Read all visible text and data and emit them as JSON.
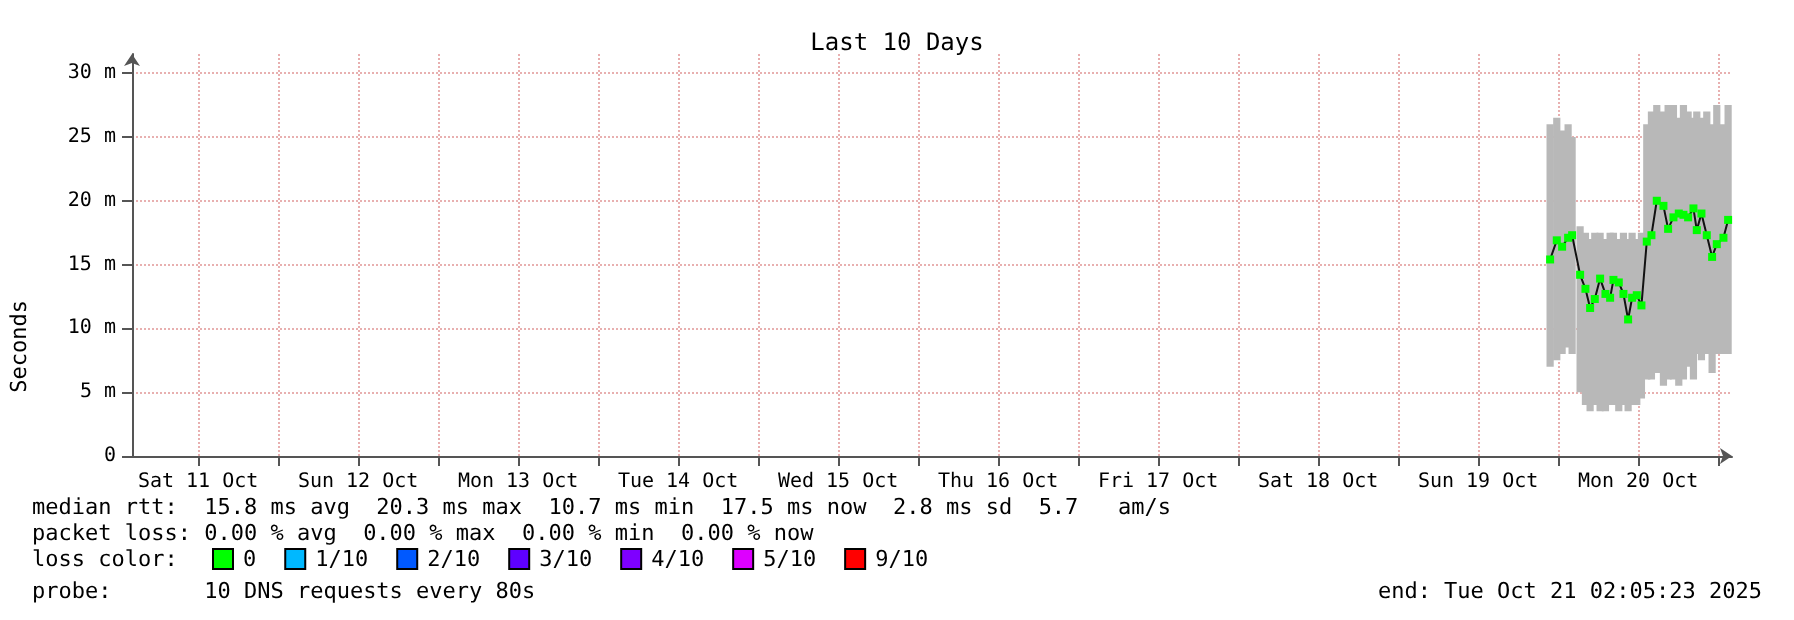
{
  "chart_data": {
    "type": "line",
    "title": "Last 10 Days",
    "ylabel": "Seconds",
    "legend_title": "loss color:",
    "legend": "bottom",
    "grid": true,
    "marker": "square",
    "line_style": "solid",
    "xlim": [
      "2025-10-11T02:05",
      "2025-10-21T02:05"
    ],
    "xticks": [
      {
        "value": "2025-10-11T12:00",
        "label": "Sat 11 Oct"
      },
      {
        "value": "2025-10-12T00:00",
        "label": null
      },
      {
        "value": "2025-10-12T12:00",
        "label": "Sun 12 Oct"
      },
      {
        "value": "2025-10-13T00:00",
        "label": null
      },
      {
        "value": "2025-10-13T12:00",
        "label": "Mon 13 Oct"
      },
      {
        "value": "2025-10-14T00:00",
        "label": null
      },
      {
        "value": "2025-10-14T12:00",
        "label": "Tue 14 Oct"
      },
      {
        "value": "2025-10-15T00:00",
        "label": null
      },
      {
        "value": "2025-10-15T12:00",
        "label": "Wed 15 Oct"
      },
      {
        "value": "2025-10-16T00:00",
        "label": null
      },
      {
        "value": "2025-10-16T12:00",
        "label": "Thu 16 Oct"
      },
      {
        "value": "2025-10-17T00:00",
        "label": null
      },
      {
        "value": "2025-10-17T12:00",
        "label": "Fri 17 Oct"
      },
      {
        "value": "2025-10-18T00:00",
        "label": null
      },
      {
        "value": "2025-10-18T12:00",
        "label": "Sat 18 Oct"
      },
      {
        "value": "2025-10-19T00:00",
        "label": null
      },
      {
        "value": "2025-10-19T12:00",
        "label": "Sun 19 Oct"
      },
      {
        "value": "2025-10-20T00:00",
        "label": null
      },
      {
        "value": "2025-10-20T12:00",
        "label": "Mon 20 Oct"
      },
      {
        "value": "2025-10-21T00:00",
        "label": null
      }
    ],
    "ylim": [
      0,
      31.5
    ],
    "yticks": [
      0,
      {
        "value": 5,
        "label": "5 m"
      },
      {
        "value": 10,
        "label": "10 m"
      },
      {
        "value": 15,
        "label": "15 m"
      },
      {
        "value": 20,
        "label": "20 m"
      },
      {
        "value": 25,
        "label": "25 m"
      },
      {
        "value": 30,
        "label": "30 m"
      }
    ],
    "x": [
      "2025-10-19T22:48",
      "2025-10-19T23:48",
      "2025-10-20T00:36",
      "2025-10-20T01:30",
      "2025-10-20T02:06",
      "2025-10-20T03:18",
      "2025-10-20T04:06",
      "2025-10-20T04:48",
      "2025-10-20T05:30",
      "2025-10-20T06:18",
      "2025-10-20T07:06",
      "2025-10-20T07:48",
      "2025-10-20T08:18",
      "2025-10-20T09:06",
      "2025-10-20T09:48",
      "2025-10-20T10:30",
      "2025-10-20T11:06",
      "2025-10-20T11:48",
      "2025-10-20T12:30",
      "2025-10-20T13:18",
      "2025-10-20T14:00",
      "2025-10-20T14:48",
      "2025-10-20T15:48",
      "2025-10-20T16:30",
      "2025-10-20T17:18",
      "2025-10-20T18:06",
      "2025-10-20T18:48",
      "2025-10-20T19:30",
      "2025-10-20T20:18",
      "2025-10-20T20:48",
      "2025-10-20T21:30",
      "2025-10-20T22:18",
      "2025-10-20T23:06",
      "2025-10-20T23:48",
      "2025-10-21T00:48",
      "2025-10-21T01:30"
    ],
    "series": [
      {
        "name": "0",
        "color": "#00ff00",
        "values": [
          15.4,
          16.9,
          16.4,
          17.1,
          17.3,
          14.2,
          13.1,
          11.6,
          12.3,
          13.9,
          12.7,
          12.4,
          13.8,
          13.6,
          12.7,
          10.7,
          12.4,
          12.6,
          11.8,
          16.8,
          17.3,
          20,
          19.6,
          17.8,
          18.7,
          19,
          18.9,
          18.7,
          19.4,
          17.7,
          19,
          17.3,
          15.6,
          16.6,
          17.1,
          18.5
        ],
        "lower": [
          7,
          7.5,
          8,
          8.5,
          8,
          5,
          4,
          3.5,
          4,
          3.5,
          3.5,
          4,
          4,
          3.5,
          4,
          3.5,
          4,
          4,
          4.5,
          6,
          6,
          6.5,
          5.5,
          6,
          6,
          5.5,
          6,
          7,
          6,
          8,
          7.5,
          8,
          6.5,
          8,
          8,
          8
        ],
        "upper": [
          26,
          26.5,
          25.5,
          26,
          25,
          18,
          17.5,
          17,
          17.5,
          17.5,
          17,
          17.5,
          17.5,
          17,
          17.5,
          17,
          17.5,
          17,
          17.5,
          26,
          27,
          27.5,
          27,
          27.5,
          27.5,
          26.5,
          27.5,
          27,
          26.5,
          27,
          26.5,
          27,
          26,
          27.5,
          26,
          27.5
        ]
      },
      {
        "name": "1/10",
        "color": "#00b8ff",
        "values": [
          null,
          null,
          null,
          null,
          null,
          null,
          null,
          null,
          null,
          null,
          null,
          null,
          null,
          null,
          null,
          null,
          null,
          null,
          null,
          null,
          null,
          null,
          null,
          null,
          null,
          null,
          null,
          null,
          null,
          null,
          null,
          null,
          null,
          null,
          null,
          null
        ]
      },
      {
        "name": "2/10",
        "color": "#0059ff",
        "values": [
          null,
          null,
          null,
          null,
          null,
          null,
          null,
          null,
          null,
          null,
          null,
          null,
          null,
          null,
          null,
          null,
          null,
          null,
          null,
          null,
          null,
          null,
          null,
          null,
          null,
          null,
          null,
          null,
          null,
          null,
          null,
          null,
          null,
          null,
          null,
          null
        ]
      },
      {
        "name": "3/10",
        "color": "#5e00ff",
        "values": [
          null,
          null,
          null,
          null,
          null,
          null,
          null,
          null,
          null,
          null,
          null,
          null,
          null,
          null,
          null,
          null,
          null,
          null,
          null,
          null,
          null,
          null,
          null,
          null,
          null,
          null,
          null,
          null,
          null,
          null,
          null,
          null,
          null,
          null,
          null,
          null
        ]
      },
      {
        "name": "4/10",
        "color": "#7e00ff",
        "values": [
          null,
          null,
          null,
          null,
          null,
          null,
          null,
          null,
          null,
          null,
          null,
          null,
          null,
          null,
          null,
          null,
          null,
          null,
          null,
          null,
          null,
          null,
          null,
          null,
          null,
          null,
          null,
          null,
          null,
          null,
          null,
          null,
          null,
          null,
          null,
          null
        ]
      },
      {
        "name": "5/10",
        "color": "#dd00ff",
        "values": [
          null,
          null,
          null,
          null,
          null,
          null,
          null,
          null,
          null,
          null,
          null,
          null,
          null,
          null,
          null,
          null,
          null,
          null,
          null,
          null,
          null,
          null,
          null,
          null,
          null,
          null,
          null,
          null,
          null,
          null,
          null,
          null,
          null,
          null,
          null,
          null
        ]
      },
      {
        "name": "9/10",
        "color": "#ff0000",
        "values": [
          null,
          null,
          null,
          null,
          null,
          null,
          null,
          null,
          null,
          null,
          null,
          null,
          null,
          null,
          null,
          null,
          null,
          null,
          null,
          null,
          null,
          null,
          null,
          null,
          null,
          null,
          null,
          null,
          null,
          null,
          null,
          null,
          null,
          null,
          null,
          null
        ]
      }
    ],
    "annotations": [
      "median rtt:  15.8 ms avg  20.3 ms max  10.7 ms min  17.5 ms now  2.8 ms sd  5.7   am/s",
      "packet loss: 0.00 % avg  0.00 % max  0.00 % min  0.00 % now",
      "probe:       10 DNS requests every 80s",
      "end: Tue Oct 21 02:05:23 2025"
    ]
  }
}
